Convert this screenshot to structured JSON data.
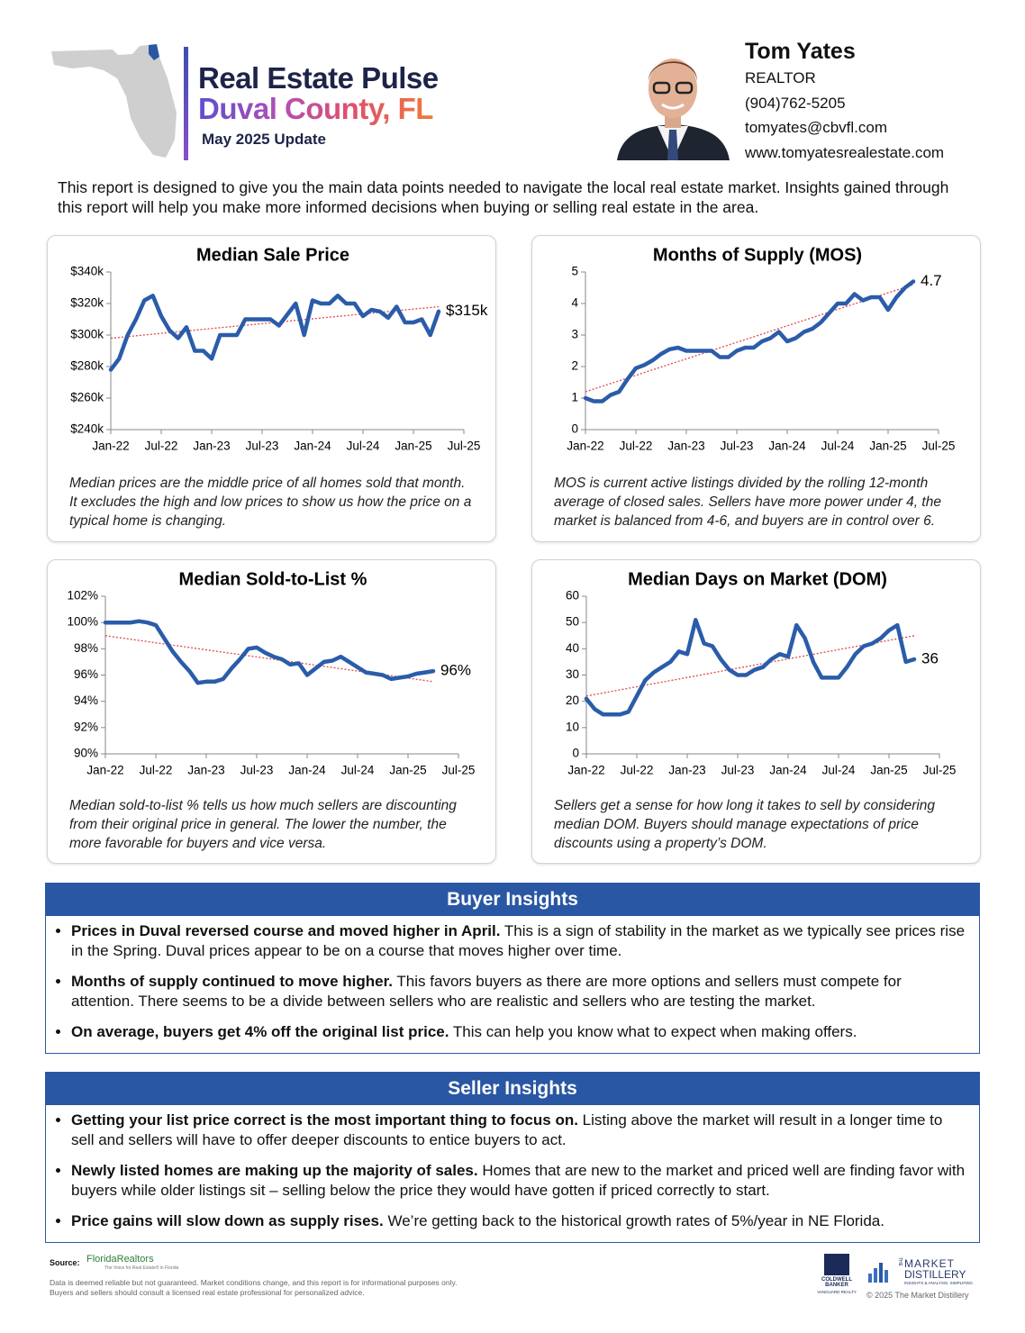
{
  "header": {
    "title": "Real Estate Pulse",
    "subtitle": "Duval County, FL",
    "update": "May 2025 Update"
  },
  "agent": {
    "name": "Tom Yates",
    "role": "REALTOR",
    "phone": "(904)762-5205",
    "email": "tomyates@cbvfl.com",
    "website": "www.tomyatesrealestate.com"
  },
  "intro": "This report is designed to give you the main data points needed to navigate the local real estate market. Insights gained through this report will help you make more informed decisions when buying or selling real estate in the area.",
  "chart_data": [
    {
      "type": "line",
      "title": "Median Sale Price",
      "color": "#2a5caa",
      "x": [
        "2022-01",
        "2022-02",
        "2022-03",
        "2022-04",
        "2022-05",
        "2022-06",
        "2022-07",
        "2022-08",
        "2022-09",
        "2022-10",
        "2022-11",
        "2022-12",
        "2023-01",
        "2023-02",
        "2023-03",
        "2023-04",
        "2023-05",
        "2023-06",
        "2023-07",
        "2023-08",
        "2023-09",
        "2023-10",
        "2023-11",
        "2023-12",
        "2024-01",
        "2024-02",
        "2024-03",
        "2024-04",
        "2024-05",
        "2024-06",
        "2024-07",
        "2024-08",
        "2024-09",
        "2024-10",
        "2024-11",
        "2024-12",
        "2025-01",
        "2025-02",
        "2025-03",
        "2025-04"
      ],
      "values": [
        278000,
        285000,
        300000,
        310000,
        322000,
        325000,
        312000,
        303000,
        298000,
        305000,
        290000,
        290000,
        285000,
        300000,
        300000,
        300000,
        310000,
        310000,
        310000,
        310000,
        306000,
        313000,
        320000,
        300000,
        322000,
        320000,
        320000,
        325000,
        320000,
        320000,
        312000,
        316000,
        315000,
        311000,
        318000,
        308000,
        308000,
        310000,
        300000,
        315000
      ],
      "value_labels": [
        null,
        null,
        null,
        null,
        null,
        null,
        null,
        null,
        null,
        null,
        null,
        null,
        null,
        null,
        null,
        null,
        null,
        null,
        null,
        null,
        null,
        null,
        null,
        null,
        null,
        null,
        null,
        null,
        null,
        null,
        null,
        null,
        null,
        null,
        null,
        null,
        null,
        null,
        null,
        "$315k"
      ],
      "trendline": {
        "color": "#e04848",
        "x": [
          "2022-01",
          "2025-04"
        ],
        "values": [
          298000,
          318000
        ]
      },
      "xlim": [
        "2022-01",
        "2025-07"
      ],
      "xticks": [
        {
          "value": "2022-01",
          "label": "Jan-22"
        },
        {
          "value": "2022-07",
          "label": "Jul-22"
        },
        {
          "value": "2023-01",
          "label": "Jan-23"
        },
        {
          "value": "2023-07",
          "label": "Jul-23"
        },
        {
          "value": "2024-01",
          "label": "Jan-24"
        },
        {
          "value": "2024-07",
          "label": "Jul-24"
        },
        {
          "value": "2025-01",
          "label": "Jan-25"
        },
        {
          "value": "2025-07",
          "label": "Jul-25"
        }
      ],
      "ylim": [
        240000,
        340000
      ],
      "yticks": [
        {
          "value": 240000,
          "label": "$240k"
        },
        {
          "value": 260000,
          "label": "$260k"
        },
        {
          "value": 280000,
          "label": "$280k"
        },
        {
          "value": 300000,
          "label": "$300k"
        },
        {
          "value": 320000,
          "label": "$320k"
        },
        {
          "value": 340000,
          "label": "$340k"
        }
      ],
      "caption": "Median prices are the middle price of all homes sold that month. It excludes the high and low prices to show us how the price on a typical home is changing."
    },
    {
      "type": "line",
      "title": "Months of Supply (MOS)",
      "color": "#2a5caa",
      "x": [
        "2022-01",
        "2022-02",
        "2022-03",
        "2022-04",
        "2022-05",
        "2022-06",
        "2022-07",
        "2022-08",
        "2022-09",
        "2022-10",
        "2022-11",
        "2022-12",
        "2023-01",
        "2023-02",
        "2023-03",
        "2023-04",
        "2023-05",
        "2023-06",
        "2023-07",
        "2023-08",
        "2023-09",
        "2023-10",
        "2023-11",
        "2023-12",
        "2024-01",
        "2024-02",
        "2024-03",
        "2024-04",
        "2024-05",
        "2024-06",
        "2024-07",
        "2024-08",
        "2024-09",
        "2024-10",
        "2024-11",
        "2024-12",
        "2025-01",
        "2025-02",
        "2025-03",
        "2025-04"
      ],
      "values": [
        1.0,
        0.9,
        0.9,
        1.1,
        1.2,
        1.6,
        1.95,
        2.05,
        2.2,
        2.4,
        2.55,
        2.6,
        2.5,
        2.5,
        2.5,
        2.5,
        2.3,
        2.3,
        2.5,
        2.6,
        2.6,
        2.8,
        2.9,
        3.1,
        2.8,
        2.9,
        3.1,
        3.2,
        3.4,
        3.7,
        4.0,
        4.0,
        4.3,
        4.1,
        4.2,
        4.2,
        3.8,
        4.2,
        4.5,
        4.7
      ],
      "value_labels": [
        null,
        null,
        null,
        null,
        null,
        null,
        null,
        null,
        null,
        null,
        null,
        null,
        null,
        null,
        null,
        null,
        null,
        null,
        null,
        null,
        null,
        null,
        null,
        null,
        null,
        null,
        null,
        null,
        null,
        null,
        null,
        null,
        null,
        null,
        null,
        null,
        null,
        null,
        null,
        "4.7"
      ],
      "trendline": {
        "color": "#e04848",
        "x": [
          "2022-01",
          "2025-04"
        ],
        "values": [
          1.2,
          4.6
        ]
      },
      "xlim": [
        "2022-01",
        "2025-07"
      ],
      "xticks": [
        {
          "value": "2022-01",
          "label": "Jan-22"
        },
        {
          "value": "2022-07",
          "label": "Jul-22"
        },
        {
          "value": "2023-01",
          "label": "Jan-23"
        },
        {
          "value": "2023-07",
          "label": "Jul-23"
        },
        {
          "value": "2024-01",
          "label": "Jan-24"
        },
        {
          "value": "2024-07",
          "label": "Jul-24"
        },
        {
          "value": "2025-01",
          "label": "Jan-25"
        },
        {
          "value": "2025-07",
          "label": "Jul-25"
        }
      ],
      "ylim": [
        0,
        5
      ],
      "yticks": [
        0,
        1,
        2,
        3,
        4,
        5
      ],
      "caption": "MOS is current active listings divided by the rolling 12-month average of closed sales. Sellers have more power under 4, the market is balanced from 4-6, and buyers are in control over 6."
    },
    {
      "type": "line",
      "title": "Median Sold-to-List %",
      "color": "#2a5caa",
      "x": [
        "2022-01",
        "2022-02",
        "2022-03",
        "2022-04",
        "2022-05",
        "2022-06",
        "2022-07",
        "2022-08",
        "2022-09",
        "2022-10",
        "2022-11",
        "2022-12",
        "2023-01",
        "2023-02",
        "2023-03",
        "2023-04",
        "2023-05",
        "2023-06",
        "2023-07",
        "2023-08",
        "2023-09",
        "2023-10",
        "2023-11",
        "2023-12",
        "2024-01",
        "2024-02",
        "2024-03",
        "2024-04",
        "2024-05",
        "2024-06",
        "2024-07",
        "2024-08",
        "2024-09",
        "2024-10",
        "2024-11",
        "2024-12",
        "2025-01",
        "2025-02",
        "2025-03",
        "2025-04"
      ],
      "values": [
        100,
        100,
        100,
        100,
        100.1,
        100,
        99.8,
        98.8,
        97.8,
        97.0,
        96.3,
        95.4,
        95.5,
        95.5,
        95.7,
        96.5,
        97.2,
        98.0,
        98.1,
        97.7,
        97.4,
        97.2,
        96.8,
        96.9,
        96.0,
        96.5,
        97.0,
        97.1,
        97.4,
        97.0,
        96.6,
        96.2,
        96.1,
        96.0,
        95.7,
        95.8,
        95.9,
        96.1,
        96.2,
        96.3
      ],
      "value_labels": [
        null,
        null,
        null,
        null,
        null,
        null,
        null,
        null,
        null,
        null,
        null,
        null,
        null,
        null,
        null,
        null,
        null,
        null,
        null,
        null,
        null,
        null,
        null,
        null,
        null,
        null,
        null,
        null,
        null,
        null,
        null,
        null,
        null,
        null,
        null,
        null,
        null,
        null,
        null,
        "96%"
      ],
      "trendline": {
        "color": "#e04848",
        "x": [
          "2022-01",
          "2025-04"
        ],
        "values": [
          99.0,
          95.5
        ]
      },
      "xlim": [
        "2022-01",
        "2025-07"
      ],
      "xticks": [
        {
          "value": "2022-01",
          "label": "Jan-22"
        },
        {
          "value": "2022-07",
          "label": "Jul-22"
        },
        {
          "value": "2023-01",
          "label": "Jan-23"
        },
        {
          "value": "2023-07",
          "label": "Jul-23"
        },
        {
          "value": "2024-01",
          "label": "Jan-24"
        },
        {
          "value": "2024-07",
          "label": "Jul-24"
        },
        {
          "value": "2025-01",
          "label": "Jan-25"
        },
        {
          "value": "2025-07",
          "label": "Jul-25"
        }
      ],
      "ylim": [
        90,
        102
      ],
      "yticks": [
        {
          "value": 90,
          "label": "90%"
        },
        {
          "value": 92,
          "label": "92%"
        },
        {
          "value": 94,
          "label": "94%"
        },
        {
          "value": 96,
          "label": "96%"
        },
        {
          "value": 98,
          "label": "98%"
        },
        {
          "value": 100,
          "label": "100%"
        },
        {
          "value": 102,
          "label": "102%"
        }
      ],
      "caption": "Median sold-to-list % tells us how much sellers are discounting from their original price in general. The lower the number, the more favorable for buyers and vice versa."
    },
    {
      "type": "line",
      "title": "Median Days on Market (DOM)",
      "color": "#2a5caa",
      "x": [
        "2022-01",
        "2022-02",
        "2022-03",
        "2022-04",
        "2022-05",
        "2022-06",
        "2022-07",
        "2022-08",
        "2022-09",
        "2022-10",
        "2022-11",
        "2022-12",
        "2023-01",
        "2023-02",
        "2023-03",
        "2023-04",
        "2023-05",
        "2023-06",
        "2023-07",
        "2023-08",
        "2023-09",
        "2023-10",
        "2023-11",
        "2023-12",
        "2024-01",
        "2024-02",
        "2024-03",
        "2024-04",
        "2024-05",
        "2024-06",
        "2024-07",
        "2024-08",
        "2024-09",
        "2024-10",
        "2024-11",
        "2024-12",
        "2025-01",
        "2025-02",
        "2025-03",
        "2025-04"
      ],
      "values": [
        21,
        17,
        15,
        15,
        15,
        16,
        22,
        28,
        31,
        33,
        35,
        39,
        38,
        51,
        42,
        41,
        36,
        32,
        30,
        30,
        32,
        33,
        36,
        38,
        37,
        49,
        44,
        35,
        29,
        29,
        29,
        33,
        38,
        41,
        42,
        44,
        47,
        49,
        35,
        36
      ],
      "value_labels": [
        null,
        null,
        null,
        null,
        null,
        null,
        null,
        null,
        null,
        null,
        null,
        null,
        null,
        null,
        null,
        null,
        null,
        null,
        null,
        null,
        null,
        null,
        null,
        null,
        null,
        null,
        null,
        null,
        null,
        null,
        null,
        null,
        null,
        null,
        null,
        null,
        null,
        null,
        null,
        "36"
      ],
      "trendline": {
        "color": "#e04848",
        "x": [
          "2022-01",
          "2025-04"
        ],
        "values": [
          22,
          45
        ]
      },
      "xlim": [
        "2022-01",
        "2025-07"
      ],
      "xticks": [
        {
          "value": "2022-01",
          "label": "Jan-22"
        },
        {
          "value": "2022-07",
          "label": "Jul-22"
        },
        {
          "value": "2023-01",
          "label": "Jan-23"
        },
        {
          "value": "2023-07",
          "label": "Jul-23"
        },
        {
          "value": "2024-01",
          "label": "Jan-24"
        },
        {
          "value": "2024-07",
          "label": "Jul-24"
        },
        {
          "value": "2025-01",
          "label": "Jan-25"
        },
        {
          "value": "2025-07",
          "label": "Jul-25"
        }
      ],
      "ylim": [
        0,
        60
      ],
      "yticks": [
        0,
        10,
        20,
        30,
        40,
        50,
        60
      ],
      "caption": "Sellers get a sense for how long it takes to sell by considering median DOM. Buyers should manage expectations of price discounts using a property’s DOM."
    }
  ],
  "buyer_insights": {
    "title": "Buyer Insights",
    "items": [
      {
        "lead": "Prices in Duval reversed course and moved higher in April.",
        "text": "This is a sign of stability in the market as we typically see prices rise in the Spring. Duval prices appear to be on a course that moves higher over time."
      },
      {
        "lead": "Months of supply continued to move higher.",
        "text": "This favors buyers as there are more options and sellers must compete for attention. There seems to be a divide between sellers who are realistic and sellers who are testing the market."
      },
      {
        "lead": "On average, buyers get 4% off the original list price.",
        "text": "This can help you know what to expect when making offers."
      }
    ]
  },
  "seller_insights": {
    "title": "Seller Insights",
    "items": [
      {
        "lead": "Getting your list price correct is the most important thing to focus on.",
        "text": "Listing above the market will result in a longer time to sell and sellers will have to offer deeper discounts to entice buyers to act."
      },
      {
        "lead": "Newly listed homes are making up the majority of sales.",
        "text": "Homes that are new to the market and priced well are finding favor with buyers while older listings sit – selling below the price they would have gotten if priced correctly to start."
      },
      {
        "lead": "Price gains will slow down as supply rises.",
        "text": "We’re getting back to the historical growth rates of 5%/year in NE Florida."
      }
    ]
  },
  "footer": {
    "source_label": "Source:",
    "source": "FloridaRealtors",
    "source_tagline": "The Voice for Real Estate® in Florida",
    "disclaimer": "Data is deemed reliable but not guaranteed. Market conditions change, and this report is for informational purposes only. Buyers and sellers should consult a licensed real estate professional for personalized advice.",
    "brokerage": "COLDWELL BANKER",
    "brokerage_sub": "VANGUARD REALTY",
    "distillery_lines": [
      "THE",
      "MARKET",
      "DISTILLERY"
    ],
    "distillery_tagline": "INSIGHTS & ANALYSIS. SIMPLIFIED.",
    "copyright": "© 2025 The Market Distillery"
  }
}
